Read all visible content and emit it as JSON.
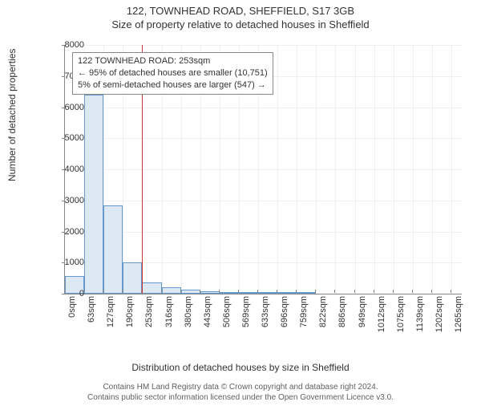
{
  "titles": {
    "main": "122, TOWNHEAD ROAD, SHEFFIELD, S17 3GB",
    "sub": "Size of property relative to detached houses in Sheffield"
  },
  "axes": {
    "ylabel": "Number of detached properties",
    "xlabel": "Distribution of detached houses by size in Sheffield",
    "ylim": [
      0,
      8000
    ],
    "ytick_step": 1000,
    "xlim": [
      0,
      1300
    ],
    "xtick_step": 63.3,
    "xtick_unit": "sqm",
    "label_fontsize": 12,
    "tick_fontsize": 11,
    "grid_color": "#f0f0f0",
    "axis_color": "#888888"
  },
  "histogram": {
    "type": "histogram",
    "bin_width": 63.3,
    "bar_fill": "#dce9f5",
    "bar_stroke": "#6699cc",
    "bins": [
      {
        "x": 0,
        "count": 560
      },
      {
        "x": 63.3,
        "count": 6400
      },
      {
        "x": 126.6,
        "count": 2850
      },
      {
        "x": 189.9,
        "count": 1000
      },
      {
        "x": 253.2,
        "count": 360
      },
      {
        "x": 316.5,
        "count": 200
      },
      {
        "x": 379.8,
        "count": 120
      },
      {
        "x": 443.1,
        "count": 80
      },
      {
        "x": 506.4,
        "count": 55
      },
      {
        "x": 569.7,
        "count": 20
      },
      {
        "x": 633.0,
        "count": 14
      },
      {
        "x": 696.3,
        "count": 8
      },
      {
        "x": 759.6,
        "count": 5
      }
    ]
  },
  "reference_line": {
    "x": 253,
    "color": "#cc3333"
  },
  "annotation": {
    "lines": [
      "122 TOWNHEAD ROAD: 253sqm",
      "← 95% of detached houses are smaller (10,751)",
      "5% of semi-detached houses are larger (547) →"
    ],
    "border_color": "#888888",
    "background": "#ffffff",
    "fontsize": 11
  },
  "xtick_labels": [
    "0sqm",
    "63sqm",
    "127sqm",
    "190sqm",
    "253sqm",
    "316sqm",
    "380sqm",
    "443sqm",
    "506sqm",
    "569sqm",
    "633sqm",
    "696sqm",
    "759sqm",
    "822sqm",
    "886sqm",
    "949sqm",
    "1012sqm",
    "1075sqm",
    "1139sqm",
    "1202sqm",
    "1265sqm"
  ],
  "footer": {
    "line1": "Contains HM Land Registry data © Crown copyright and database right 2024.",
    "line2": "Contains public sector information licensed under the Open Government Licence v3.0."
  },
  "colors": {
    "background": "#ffffff",
    "text": "#333333",
    "footer_text": "#606060"
  }
}
